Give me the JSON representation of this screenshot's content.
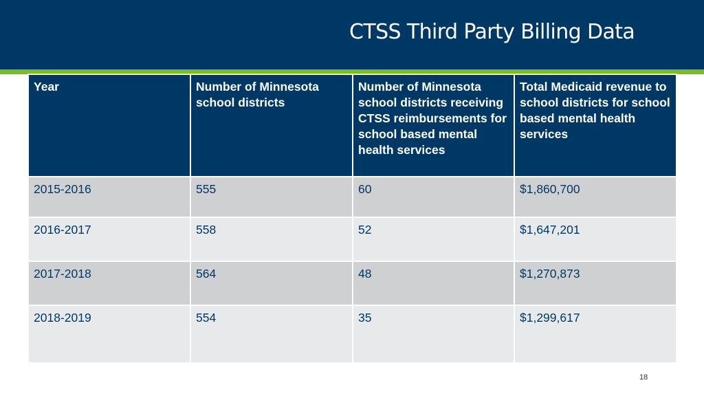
{
  "slide": {
    "title": "CTSS Third Party Billing Data",
    "page_number": "18",
    "colors": {
      "header_background": "#003865",
      "accent_stripe": "#78be21",
      "row_dark": "#cfd0d2",
      "row_light": "#e8e9ea",
      "body_text": "#003865"
    }
  },
  "table": {
    "headers": [
      "Year",
      "Number of Minnesota school districts",
      "Number of Minnesota school districts receiving CTSS reimbursements for school based mental health services",
      "Total Medicaid revenue to school districts for school based mental health services"
    ],
    "rows": [
      [
        "2015-2016",
        "555",
        "60",
        "$1,860,700"
      ],
      [
        "2016-2017",
        "558",
        "52",
        "$1,647,201"
      ],
      [
        "2017-2018",
        "564",
        "48",
        "$1,270,873"
      ],
      [
        "2018-2019",
        "554",
        "35",
        "$1,299,617"
      ]
    ]
  }
}
